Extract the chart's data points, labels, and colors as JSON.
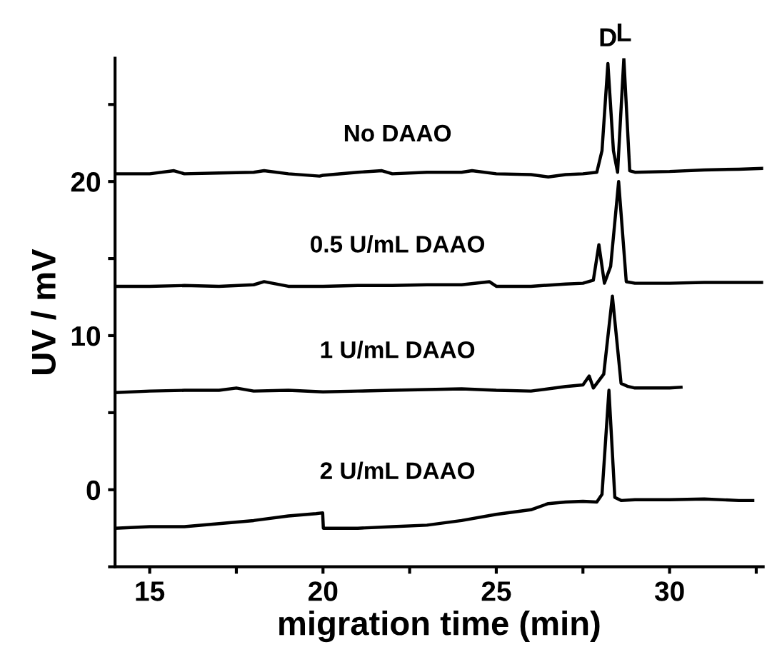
{
  "chart_data": {
    "type": "line",
    "xlabel": "migration time (min)",
    "ylabel": "UV / mV",
    "xlim": [
      14,
      32.7
    ],
    "ylim": [
      -5,
      28
    ],
    "xticks": [
      15,
      {
        "value": 17.5,
        "label": null
      },
      20,
      {
        "value": 22.5,
        "label": null
      },
      25,
      {
        "value": 27.5,
        "label": null
      },
      30,
      {
        "value": 32.5,
        "label": null
      }
    ],
    "yticks": [
      {
        "value": -5,
        "label": null
      },
      0,
      {
        "value": 5,
        "label": null
      },
      10,
      {
        "value": 15,
        "label": null
      },
      20,
      {
        "value": 25,
        "label": null
      }
    ],
    "grid": false,
    "legend": false,
    "marker": "none",
    "line_style": "solid",
    "annotations": [
      {
        "text": "D",
        "x": 28.22,
        "y": 27.66
      },
      {
        "text": "L",
        "x": 28.68,
        "y": 27.98
      }
    ],
    "series": [
      {
        "name": "No DAAO",
        "color": "#000000",
        "x": [
          14.0,
          15,
          15.7,
          16,
          17,
          18,
          18.3,
          19,
          19.9,
          20,
          21,
          21.7,
          22,
          23,
          24,
          24.3,
          25,
          26,
          26.5,
          27,
          27.5,
          27.9,
          28.05,
          28.22,
          28.38,
          28.5,
          28.68,
          28.85,
          29,
          30,
          31,
          32,
          32.7
        ],
        "values": [
          20.5,
          20.5,
          20.7,
          20.5,
          20.55,
          20.6,
          20.7,
          20.5,
          20.35,
          20.4,
          20.6,
          20.7,
          20.5,
          20.6,
          20.6,
          20.7,
          20.5,
          20.45,
          20.3,
          20.45,
          20.5,
          20.6,
          22,
          27.66,
          22,
          20.6,
          27.98,
          20.7,
          20.6,
          20.65,
          20.75,
          20.8,
          20.85
        ]
      },
      {
        "name": "0.5 U/mL DAAO",
        "color": "#000000",
        "x": [
          14,
          15,
          16,
          17,
          18,
          18.3,
          19,
          20,
          21,
          22,
          23,
          24,
          24.8,
          25,
          26,
          27,
          27.5,
          27.8,
          27.96,
          28.12,
          28.3,
          28.53,
          28.75,
          29,
          30,
          31,
          32,
          32.7
        ],
        "values": [
          13.2,
          13.2,
          13.25,
          13.2,
          13.3,
          13.5,
          13.2,
          13.2,
          13.25,
          13.25,
          13.3,
          13.3,
          13.5,
          13.2,
          13.2,
          13.35,
          13.4,
          13.6,
          15.9,
          13.4,
          14.5,
          20.0,
          13.5,
          13.4,
          13.4,
          13.45,
          13.45,
          13.45
        ]
      },
      {
        "name": "1 U/mL DAAO",
        "color": "#000000",
        "x": [
          14,
          15,
          16,
          17,
          17.5,
          18,
          19,
          20,
          21,
          22,
          23,
          24,
          25,
          26,
          27,
          27.5,
          27.68,
          27.8,
          28.1,
          28.35,
          28.6,
          28.8,
          29,
          30,
          30.33
        ],
        "values": [
          6.3,
          6.4,
          6.45,
          6.45,
          6.6,
          6.4,
          6.45,
          6.35,
          6.4,
          6.45,
          6.5,
          6.55,
          6.45,
          6.4,
          6.7,
          6.8,
          7.38,
          6.6,
          7.5,
          12.56,
          6.9,
          6.7,
          6.6,
          6.6,
          6.65
        ]
      },
      {
        "name": "2 U/mL DAAO",
        "color": "#000000",
        "x": [
          14,
          15,
          16,
          17,
          18,
          19,
          19.8,
          19.99,
          20.01,
          21,
          22,
          23,
          24,
          25,
          26,
          26.5,
          27,
          27.5,
          27.9,
          28.05,
          28.25,
          28.42,
          28.6,
          29,
          30,
          31,
          32,
          32.4
        ],
        "values": [
          -2.5,
          -2.4,
          -2.4,
          -2.2,
          -2.0,
          -1.7,
          -1.55,
          -1.5,
          -2.5,
          -2.5,
          -2.4,
          -2.3,
          -2.0,
          -1.6,
          -1.3,
          -0.9,
          -0.8,
          -0.75,
          -0.8,
          -0.3,
          6.45,
          -0.5,
          -0.7,
          -0.65,
          -0.65,
          -0.6,
          -0.7,
          -0.7
        ]
      }
    ]
  }
}
